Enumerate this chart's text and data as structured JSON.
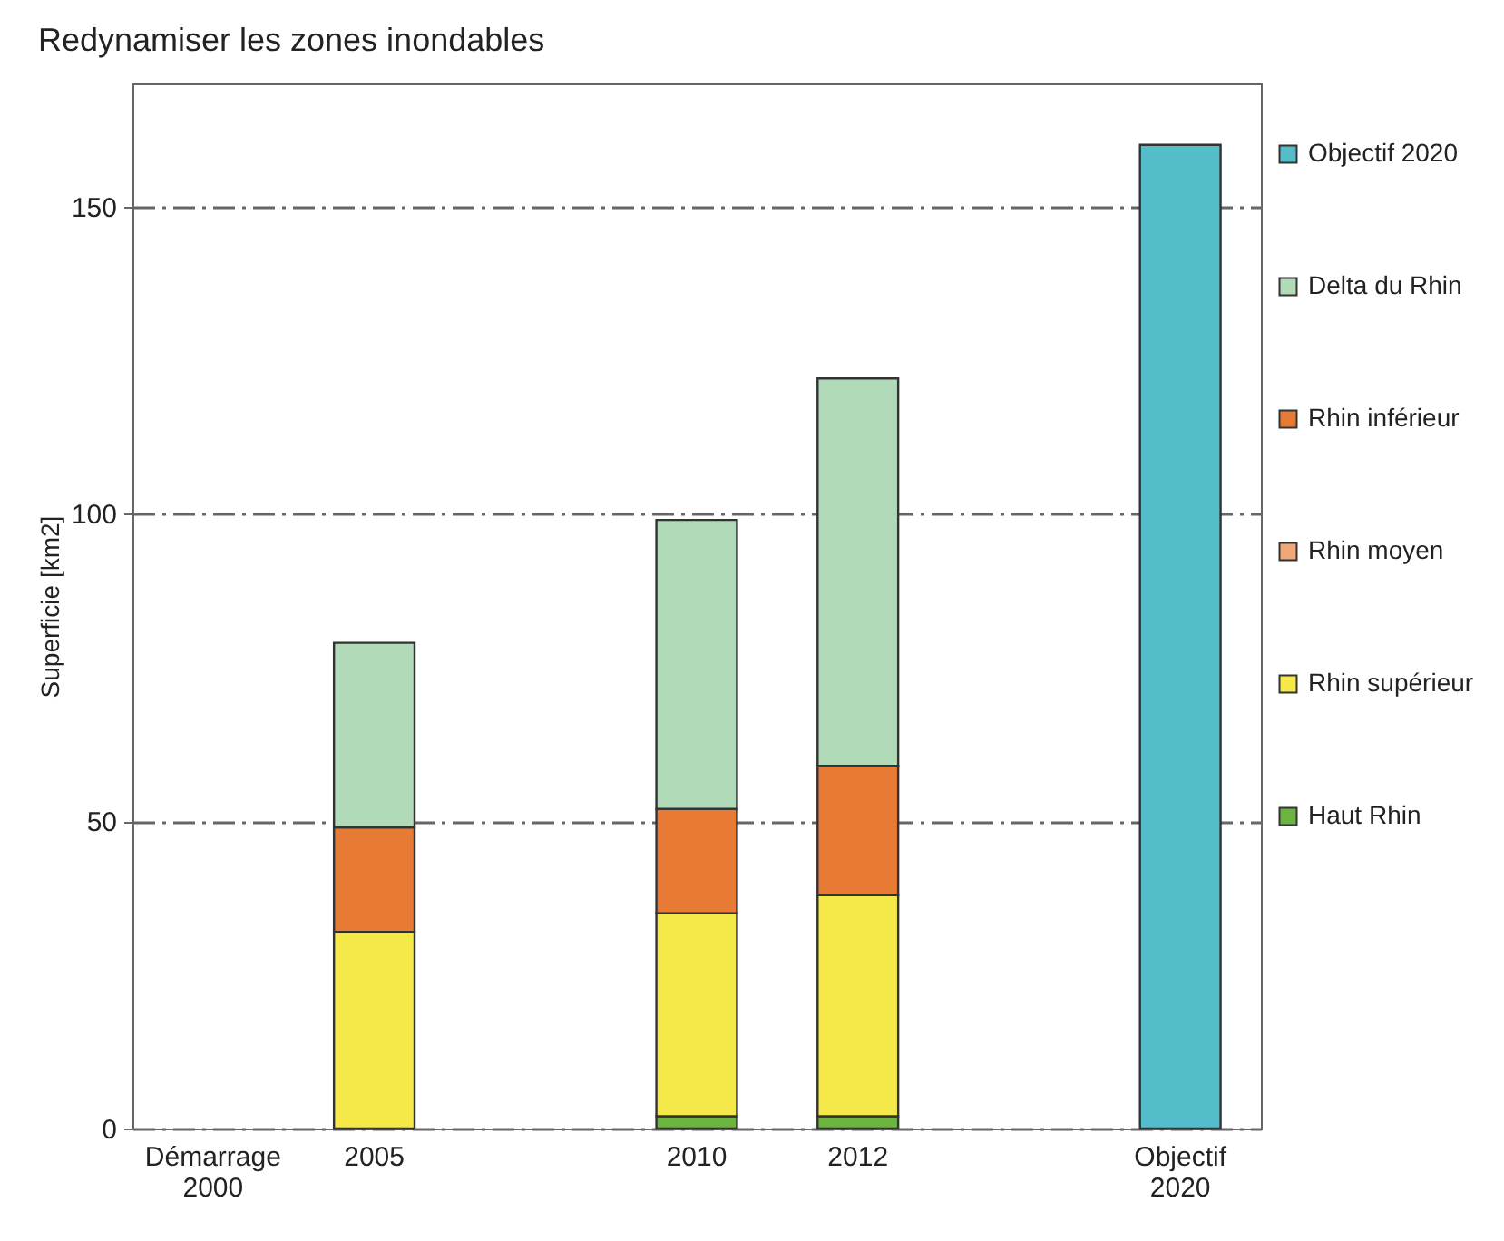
{
  "chart_data": {
    "type": "bar",
    "title": "Redynamiser les zones inondables",
    "ylabel": "Superficie [km2]",
    "categories": [
      "Démarrage 2000",
      "2005",
      null,
      "2010",
      "2012",
      null,
      "Objectif 2020"
    ],
    "stacked": true,
    "series": [
      {
        "name": "Haut Rhin",
        "color": "#6cb33f",
        "values": [
          null,
          0,
          null,
          2,
          2,
          null,
          null
        ]
      },
      {
        "name": "Rhin supérieur",
        "color": "#f5e94a",
        "values": [
          null,
          32,
          null,
          33,
          36,
          null,
          null
        ]
      },
      {
        "name": "Rhin moyen",
        "color": "#f0a878",
        "values": [
          null,
          0,
          null,
          0,
          0,
          null,
          null
        ]
      },
      {
        "name": "Rhin inférieur",
        "color": "#e77a35",
        "values": [
          null,
          17,
          null,
          17,
          21,
          null,
          null
        ]
      },
      {
        "name": "Delta du Rhin",
        "color": "#b0dab8",
        "values": [
          null,
          30,
          null,
          47,
          63,
          null,
          null
        ]
      },
      {
        "name": "Objectif 2020",
        "color": "#55bcc9",
        "values": [
          null,
          null,
          null,
          null,
          null,
          null,
          160
        ]
      }
    ],
    "ylim": [
      0,
      170
    ],
    "yticks": [
      0,
      50,
      100,
      150
    ],
    "grid": "y",
    "legend": "right"
  }
}
